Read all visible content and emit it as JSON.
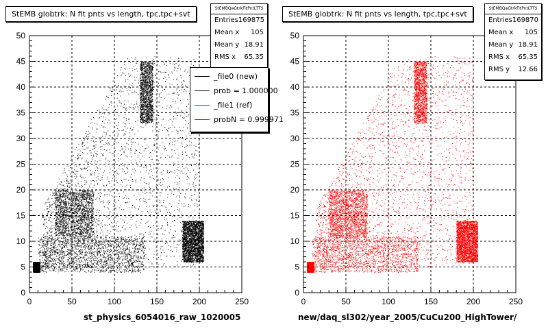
{
  "chart_data": [
    {
      "type": "scatter",
      "panel": "left",
      "title": "StEMB globtrk: N fit pnts vs length, tpc,tpc+svt",
      "xlabel": "st_physics_6054016_raw_1020005",
      "ylabel": "",
      "xlim": [
        0,
        250
      ],
      "ylim": [
        0,
        50
      ],
      "xticks": [
        0,
        50,
        100,
        150,
        200,
        250
      ],
      "yticks": [
        0,
        5,
        10,
        15,
        20,
        25,
        30,
        35,
        40,
        45,
        50
      ],
      "grid": true,
      "color": "#000000",
      "stats": {
        "name": "StEMBQaGtrkFitPntLTTS",
        "entries": "169875",
        "mean_x": "105",
        "mean_y": "18.91",
        "rms_x": "65.35"
      },
      "density_regions": [
        {
          "x": [
            4,
            12
          ],
          "y": [
            4,
            6
          ],
          "density": "very high"
        },
        {
          "x": [
            10,
            135
          ],
          "y": [
            4,
            11
          ],
          "density": "high"
        },
        {
          "x": [
            30,
            75
          ],
          "y": [
            11,
            20
          ],
          "density": "high"
        },
        {
          "x": [
            130,
            145
          ],
          "y": [
            33,
            45
          ],
          "density": "very high"
        },
        {
          "x": [
            15,
            200
          ],
          "y": [
            5,
            46
          ],
          "density": "medium"
        },
        {
          "x": [
            180,
            205
          ],
          "y": [
            6,
            14
          ],
          "density": "medium"
        }
      ],
      "legend": {
        "placement": "top-right",
        "entries": [
          {
            "label": "_file0 (new)",
            "color": "#000000"
          },
          {
            "label": "prob = 1.000000",
            "color": "#000000"
          },
          {
            "label": "_file1 (ref)",
            "color": "#ff0000"
          },
          {
            "label": "probN = 0.999971",
            "color": "#ff0000"
          }
        ]
      }
    },
    {
      "type": "scatter",
      "panel": "right",
      "title": "StEMB globtrk: N fit pnts vs length, tpc,tpc+svt",
      "xlabel": "new/daq_sl302/year_2005/CuCu200_HighTower/",
      "ylabel": "",
      "xlim": [
        0,
        250
      ],
      "ylim": [
        0,
        50
      ],
      "xticks": [
        0,
        50,
        100,
        150,
        200,
        250
      ],
      "yticks": [
        0,
        5,
        10,
        15,
        20,
        25,
        30,
        35,
        40,
        45,
        50
      ],
      "grid": true,
      "color": "#ff0000",
      "stats": {
        "name": "StEMBQaGtrkFitPntLTTS",
        "entries": "169870",
        "mean_x": "105",
        "mean_y": "18.91",
        "rms_x": "65.35",
        "rms_y": "12.66"
      },
      "density_regions": [
        {
          "x": [
            4,
            12
          ],
          "y": [
            4,
            6
          ],
          "density": "very high"
        },
        {
          "x": [
            10,
            135
          ],
          "y": [
            4,
            11
          ],
          "density": "high"
        },
        {
          "x": [
            30,
            75
          ],
          "y": [
            11,
            20
          ],
          "density": "high"
        },
        {
          "x": [
            130,
            145
          ],
          "y": [
            33,
            45
          ],
          "density": "very high"
        },
        {
          "x": [
            15,
            200
          ],
          "y": [
            5,
            46
          ],
          "density": "medium"
        },
        {
          "x": [
            180,
            205
          ],
          "y": [
            6,
            14
          ],
          "density": "medium"
        }
      ]
    }
  ],
  "labels": {
    "entries": "Entries",
    "mean_x": "Mean x",
    "mean_y": "Mean y",
    "rms_x": "RMS x",
    "rms_y": "RMS y"
  }
}
